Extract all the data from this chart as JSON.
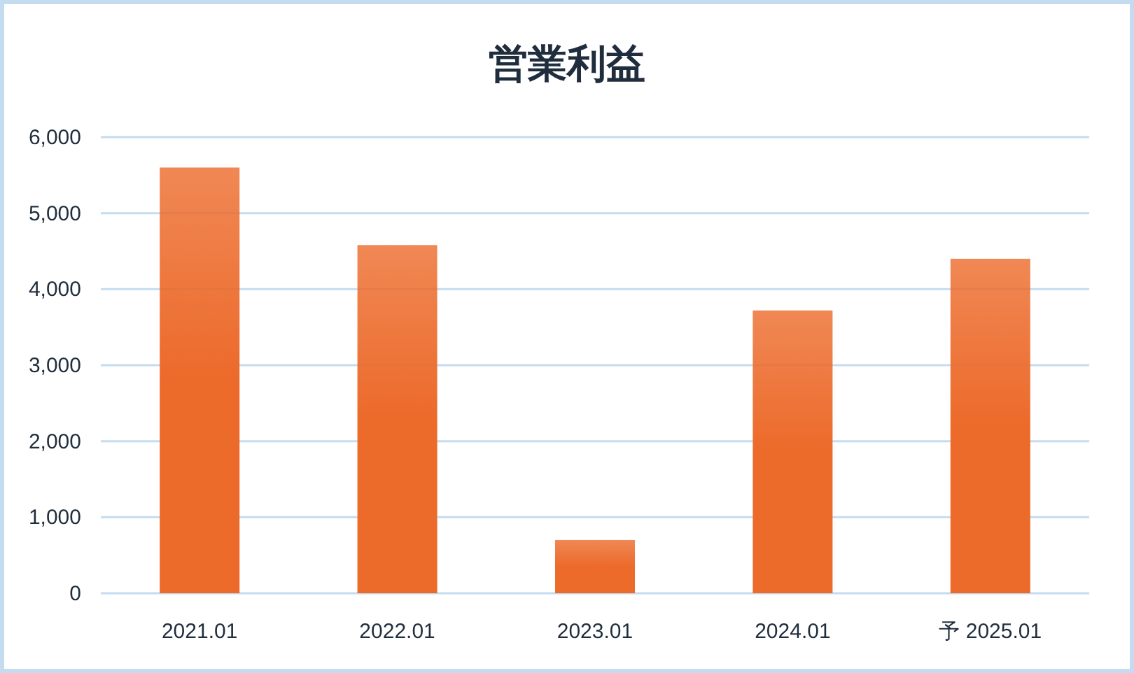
{
  "chart_data": {
    "type": "bar",
    "title": "営業利益",
    "categories": [
      "2021.01",
      "2022.01",
      "2023.01",
      "2024.01",
      "予 2025.01"
    ],
    "values": [
      5600,
      4580,
      700,
      3720,
      4400
    ],
    "color": "#ec6a2a",
    "ylim": [
      0,
      6000
    ],
    "yticks": [
      {
        "value": 0,
        "label": "0"
      },
      {
        "value": 1000,
        "label": "1,000"
      },
      {
        "value": 2000,
        "label": "2,000"
      },
      {
        "value": 3000,
        "label": "3,000"
      },
      {
        "value": 4000,
        "label": "4,000"
      },
      {
        "value": 5000,
        "label": "5,000"
      },
      {
        "value": 6000,
        "label": "6,000"
      }
    ],
    "grid": "y"
  }
}
